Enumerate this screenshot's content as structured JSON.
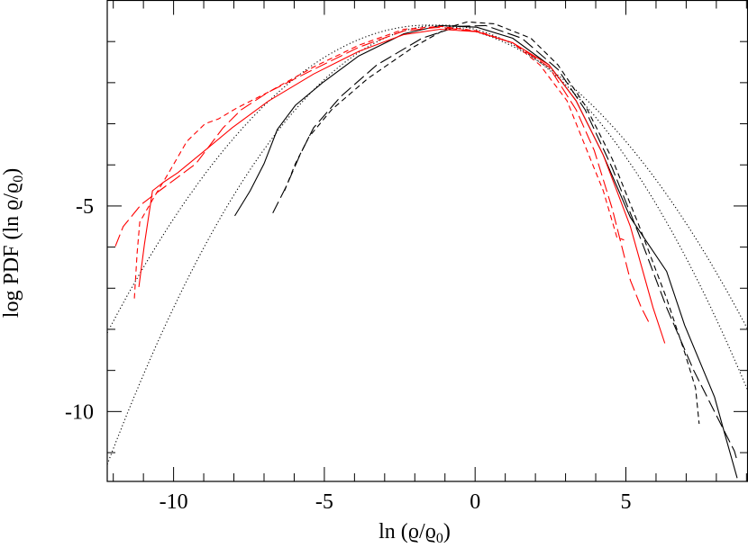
{
  "chart_data": {
    "type": "line",
    "title": "",
    "xlabel": "ln (ϱ/ϱ",
    "xlabel_sub": "0",
    "xlabel_end": ")",
    "ylabel": "log PDF (ln ϱ/ϱ",
    "ylabel_sub": "0",
    "ylabel_end": ")",
    "xlim": [
      -12.2,
      9.05
    ],
    "ylim": [
      -11.7,
      0
    ],
    "x_ticks": [
      -10,
      -5,
      0,
      5
    ],
    "x_tick_labels": [
      "-10",
      "-5",
      "0",
      "5"
    ],
    "y_ticks": [
      -5,
      -10
    ],
    "y_tick_labels": [
      "-5",
      "-10"
    ],
    "grid": false,
    "legend": "none",
    "colors": {
      "black": "#000000",
      "red": "#ff0000"
    },
    "series": [
      {
        "color": "#000000",
        "style": "solid",
        "points": [
          [
            -7.97,
            -5.24
          ],
          [
            -7.46,
            -4.63
          ],
          [
            -7.0,
            -3.97
          ],
          [
            -6.56,
            -3.14
          ],
          [
            -5.96,
            -2.55
          ],
          [
            -5.06,
            -2.0
          ],
          [
            -3.86,
            -1.35
          ],
          [
            -2.36,
            -0.81
          ],
          [
            -1.16,
            -0.61
          ],
          [
            0.05,
            -0.65
          ],
          [
            1.25,
            -0.92
          ],
          [
            2.45,
            -1.57
          ],
          [
            3.35,
            -2.44
          ],
          [
            4.25,
            -3.76
          ],
          [
            5.15,
            -5.28
          ],
          [
            6.35,
            -6.59
          ],
          [
            6.95,
            -7.9
          ],
          [
            7.94,
            -9.65
          ],
          [
            8.3,
            -10.6
          ],
          [
            8.69,
            -11.62
          ]
        ]
      },
      {
        "color": "#000000",
        "style": "longdash",
        "points": [
          [
            -6.71,
            -5.17
          ],
          [
            -6.26,
            -4.52
          ],
          [
            -5.81,
            -3.76
          ],
          [
            -5.36,
            -3.1
          ],
          [
            -4.46,
            -2.34
          ],
          [
            -3.26,
            -1.57
          ],
          [
            -1.76,
            -0.92
          ],
          [
            -0.56,
            -0.63
          ],
          [
            0.35,
            -0.61
          ],
          [
            1.55,
            -0.92
          ],
          [
            2.75,
            -1.68
          ],
          [
            3.65,
            -2.66
          ],
          [
            4.55,
            -4.08
          ],
          [
            5.45,
            -5.72
          ],
          [
            6.35,
            -7.47
          ],
          [
            7.25,
            -9.0
          ],
          [
            8.15,
            -10.31
          ],
          [
            8.6,
            -10.96
          ],
          [
            8.69,
            -11.2
          ]
        ]
      },
      {
        "color": "#000000",
        "style": "shortdash",
        "points": [
          [
            -6.32,
            -4.63
          ],
          [
            -5.96,
            -3.97
          ],
          [
            -5.51,
            -3.32
          ],
          [
            -4.76,
            -2.66
          ],
          [
            -3.56,
            -1.9
          ],
          [
            -2.06,
            -1.14
          ],
          [
            -0.86,
            -0.65
          ],
          [
            -0.26,
            -0.52
          ],
          [
            0.65,
            -0.57
          ],
          [
            1.85,
            -0.92
          ],
          [
            2.75,
            -1.57
          ],
          [
            3.65,
            -2.55
          ],
          [
            4.55,
            -3.86
          ],
          [
            5.45,
            -5.5
          ],
          [
            6.35,
            -7.25
          ],
          [
            6.95,
            -8.56
          ],
          [
            7.31,
            -9.43
          ],
          [
            7.43,
            -10.3
          ]
        ]
      },
      {
        "color": "#ff0000",
        "style": "solid",
        "points": [
          [
            -11.15,
            -6.97
          ],
          [
            -10.97,
            -5.94
          ],
          [
            -10.7,
            -4.63
          ],
          [
            -10.31,
            -4.41
          ],
          [
            -9.86,
            -4.19
          ],
          [
            -8.96,
            -3.65
          ],
          [
            -8.06,
            -3.1
          ],
          [
            -6.86,
            -2.45
          ],
          [
            -5.36,
            -1.79
          ],
          [
            -3.86,
            -1.24
          ],
          [
            -2.36,
            -0.83
          ],
          [
            -1.16,
            -0.7
          ],
          [
            0.05,
            -0.76
          ],
          [
            1.25,
            -1.03
          ],
          [
            2.45,
            -1.57
          ],
          [
            3.35,
            -2.44
          ],
          [
            4.25,
            -3.76
          ],
          [
            5.15,
            -5.5
          ],
          [
            5.9,
            -7.47
          ],
          [
            6.29,
            -8.34
          ]
        ]
      },
      {
        "color": "#ff0000",
        "style": "longdash",
        "points": [
          [
            -11.93,
            -5.98
          ],
          [
            -11.67,
            -5.5
          ],
          [
            -11.07,
            -4.96
          ],
          [
            -10.47,
            -4.63
          ],
          [
            -9.86,
            -4.3
          ],
          [
            -9.26,
            -3.97
          ],
          [
            -8.36,
            -3.1
          ],
          [
            -7.76,
            -2.66
          ],
          [
            -6.86,
            -2.23
          ],
          [
            -5.36,
            -1.68
          ],
          [
            -3.86,
            -1.14
          ],
          [
            -2.36,
            -0.74
          ],
          [
            -1.16,
            -0.65
          ],
          [
            0.05,
            -0.76
          ],
          [
            1.25,
            -1.03
          ],
          [
            2.45,
            -1.62
          ],
          [
            3.35,
            -2.66
          ],
          [
            3.95,
            -3.65
          ],
          [
            4.55,
            -5.07
          ],
          [
            5.15,
            -6.81
          ],
          [
            5.51,
            -7.47
          ],
          [
            5.81,
            -7.9
          ]
        ]
      },
      {
        "color": "#ff0000",
        "style": "shortdash",
        "points": [
          [
            -11.3,
            -7.25
          ],
          [
            -11.21,
            -6.16
          ],
          [
            -11.12,
            -5.39
          ],
          [
            -10.61,
            -4.74
          ],
          [
            -10.16,
            -4.19
          ],
          [
            -9.56,
            -3.43
          ],
          [
            -8.96,
            -3.0
          ],
          [
            -8.51,
            -2.88
          ],
          [
            -7.91,
            -2.62
          ],
          [
            -6.86,
            -2.23
          ],
          [
            -5.36,
            -1.62
          ],
          [
            -3.86,
            -1.09
          ],
          [
            -2.36,
            -0.7
          ],
          [
            -1.16,
            -0.63
          ],
          [
            0.05,
            -0.74
          ],
          [
            1.25,
            -1.03
          ],
          [
            2.15,
            -1.57
          ],
          [
            3.05,
            -2.44
          ],
          [
            3.65,
            -3.54
          ],
          [
            4.25,
            -4.63
          ],
          [
            4.7,
            -5.76
          ],
          [
            4.94,
            -5.83
          ]
        ]
      }
    ],
    "reference_curves": [
      {
        "color": "#000000",
        "style": "dotted",
        "form": "parabola",
        "peak_x": -1.55,
        "peak_y": -0.6,
        "curvature": 0.066
      },
      {
        "color": "#000000",
        "style": "dotted",
        "form": "parabola",
        "peak_x": -1.09,
        "peak_y": -0.6,
        "curvature": 0.0866
      }
    ]
  }
}
